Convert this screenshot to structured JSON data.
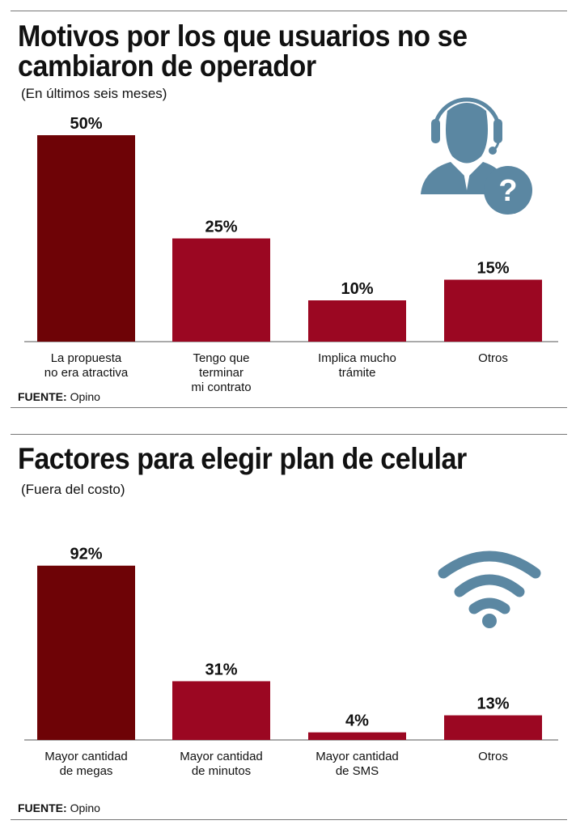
{
  "colors": {
    "highlight_bar": "#6e0306",
    "bar": "#9b0722",
    "icon": "#5b87a2",
    "axis": "#555555"
  },
  "chart_data": [
    {
      "type": "bar",
      "title": "Motivos por los que usuarios no se cambiaron de operador",
      "title_lines": [
        "Motivos por los que usuarios no se",
        "cambiaron de operador"
      ],
      "subtitle": "(En últimos seis meses)",
      "categories": [
        [
          "La propuesta",
          "no era atractiva"
        ],
        [
          "Tengo que",
          "terminar",
          "mi contrato"
        ],
        [
          "Implica mucho",
          "trámite"
        ],
        [
          "Otros"
        ]
      ],
      "values": [
        50,
        25,
        10,
        15
      ],
      "data_labels": [
        "50%",
        "25%",
        "10%",
        "15%"
      ],
      "unit": "%",
      "grid": false,
      "source_label": "FUENTE:",
      "source": "Opino",
      "icon": "customer-support-question-icon"
    },
    {
      "type": "bar",
      "title": "Factores para elegir plan de celular",
      "title_lines": [
        "Factores para elegir plan de celular"
      ],
      "subtitle": "(Fuera del costo)",
      "categories": [
        [
          "Mayor cantidad",
          "de megas"
        ],
        [
          "Mayor cantidad",
          "de minutos"
        ],
        [
          "Mayor cantidad",
          "de SMS"
        ],
        [
          "Otros"
        ]
      ],
      "values": [
        92,
        31,
        4,
        13
      ],
      "data_labels": [
        "92%",
        "31%",
        "4%",
        "13%"
      ],
      "unit": "%",
      "grid": false,
      "source_label": "FUENTE:",
      "source": "Opino",
      "icon": "wifi-icon"
    }
  ]
}
